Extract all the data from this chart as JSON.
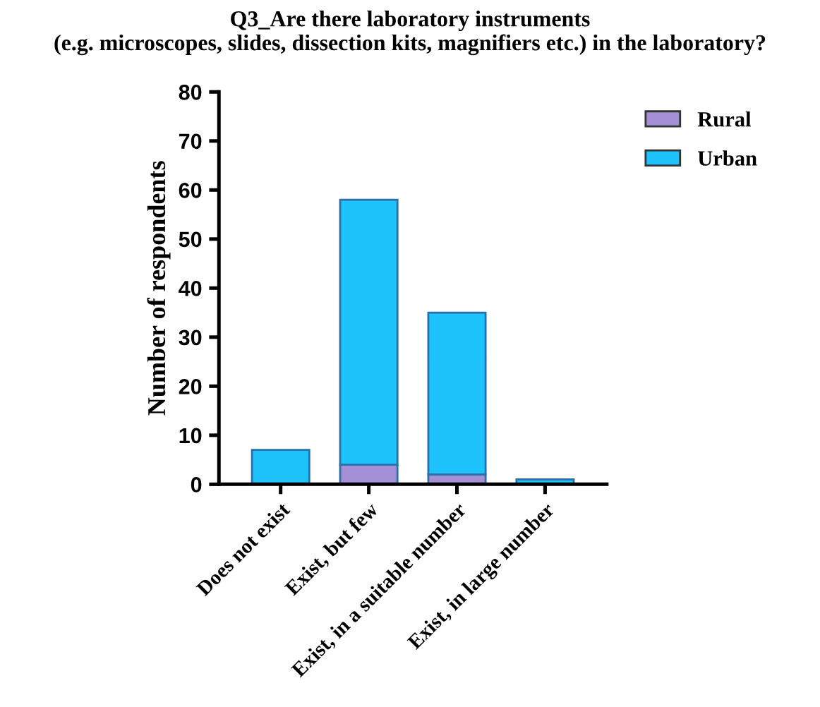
{
  "chart_data": {
    "type": "bar",
    "stacked": true,
    "title": "Q3_Are there laboratory instruments\n(e.g. microscopes, slides, dissection kits, magnifiers etc.) in the laboratory?",
    "ylabel": "Number of respondents",
    "categories": [
      "Does not exist",
      "Exist, but few",
      "Exist, in a suitable number",
      "Exist, in large number"
    ],
    "series": [
      {
        "name": "Rural",
        "color": "#a58fd6",
        "values": [
          0,
          4,
          2,
          0
        ]
      },
      {
        "name": "Urban",
        "color": "#1ec3fb",
        "values": [
          7,
          54,
          33,
          1
        ]
      }
    ],
    "ylim": [
      0,
      80
    ],
    "yticks": [
      0,
      10,
      20,
      30,
      40,
      50,
      60,
      70,
      80
    ],
    "grid": false,
    "legend": "top right"
  }
}
